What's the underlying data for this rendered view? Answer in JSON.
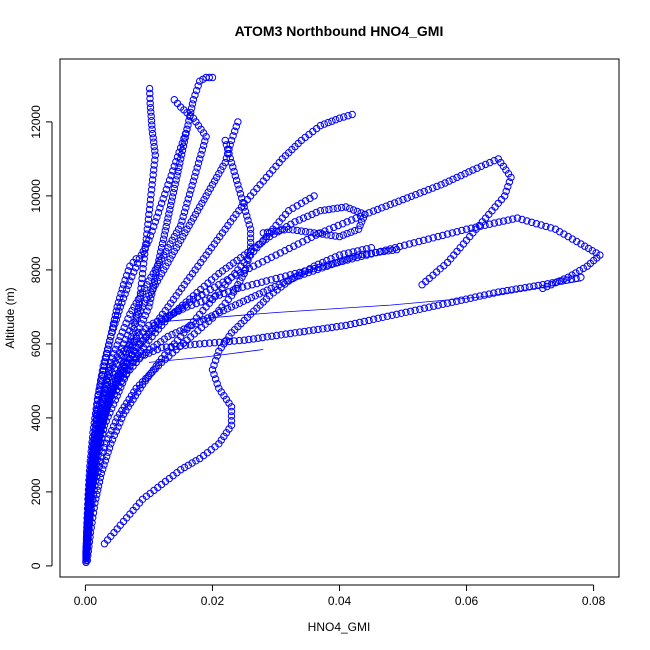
{
  "chart_data": {
    "type": "scatter",
    "title": "ATOM3 Northbound HNO4_GMI",
    "xlabel": "HNO4_GMI",
    "ylabel": "Altitude (m)",
    "xlim": [
      -0.004,
      0.084
    ],
    "ylim": [
      -300,
      13700
    ],
    "x_ticks": [
      0.0,
      0.02,
      0.04,
      0.06,
      0.08
    ],
    "x_tick_labels": [
      "0.00",
      "0.02",
      "0.04",
      "0.06",
      "0.08"
    ],
    "y_ticks": [
      0,
      2000,
      4000,
      6000,
      8000,
      10000,
      12000
    ],
    "y_tick_labels": [
      "0",
      "2000",
      "4000",
      "6000",
      "8000",
      "10000",
      "12000"
    ],
    "grid": false,
    "legend": "none",
    "marker": "open-circle",
    "color": "#0000ff",
    "series": [
      {
        "points": [
          [
            0.0001,
            100
          ],
          [
            0.0003,
            800
          ],
          [
            0.0006,
            1600
          ],
          [
            0.001,
            2400
          ],
          [
            0.0015,
            3200
          ],
          [
            0.0022,
            4000
          ],
          [
            0.003,
            4800
          ],
          [
            0.004,
            5500
          ],
          [
            0.0055,
            6200
          ],
          [
            0.007,
            6800
          ],
          [
            0.009,
            7400
          ],
          [
            0.011,
            8000
          ],
          [
            0.013,
            8600
          ],
          [
            0.015,
            9200
          ],
          [
            0.016,
            9800
          ],
          [
            0.017,
            10400
          ],
          [
            0.018,
            11000
          ],
          [
            0.019,
            11600
          ],
          [
            0.017,
            12100
          ],
          [
            0.015,
            12400
          ],
          [
            0.014,
            12600
          ]
        ]
      },
      {
        "points": [
          [
            0.0002,
            200
          ],
          [
            0.0005,
            1000
          ],
          [
            0.001,
            2000
          ],
          [
            0.002,
            3000
          ],
          [
            0.003,
            3800
          ],
          [
            0.005,
            4600
          ],
          [
            0.007,
            5400
          ],
          [
            0.01,
            6100
          ],
          [
            0.013,
            6700
          ],
          [
            0.017,
            7300
          ],
          [
            0.021,
            7900
          ],
          [
            0.025,
            8400
          ],
          [
            0.029,
            8900
          ],
          [
            0.033,
            9300
          ],
          [
            0.037,
            9600
          ],
          [
            0.041,
            9700
          ],
          [
            0.044,
            9500
          ],
          [
            0.043,
            9100
          ],
          [
            0.04,
            8900
          ],
          [
            0.036,
            9000
          ],
          [
            0.032,
            9100
          ],
          [
            0.028,
            9000
          ]
        ]
      },
      {
        "points": [
          [
            0.0001,
            300
          ],
          [
            0.0004,
            1200
          ],
          [
            0.0008,
            2200
          ],
          [
            0.0012,
            3000
          ],
          [
            0.0016,
            3800
          ],
          [
            0.002,
            4600
          ],
          [
            0.003,
            5400
          ],
          [
            0.004,
            6200
          ],
          [
            0.005,
            7000
          ],
          [
            0.006,
            7600
          ],
          [
            0.007,
            8100
          ],
          [
            0.008,
            8300
          ]
        ]
      },
      {
        "points": [
          [
            0.0002,
            500
          ],
          [
            0.0006,
            1500
          ],
          [
            0.0012,
            2500
          ],
          [
            0.002,
            3400
          ],
          [
            0.0035,
            4300
          ],
          [
            0.006,
            5100
          ],
          [
            0.009,
            5700
          ],
          [
            0.013,
            6200
          ],
          [
            0.018,
            6600
          ],
          [
            0.023,
            7000
          ],
          [
            0.028,
            7400
          ],
          [
            0.033,
            7800
          ],
          [
            0.038,
            8100
          ],
          [
            0.043,
            8400
          ],
          [
            0.047,
            8500
          ],
          [
            0.049,
            8550
          ]
        ]
      },
      {
        "points": [
          [
            0.0003,
            150
          ],
          [
            0.0008,
            900
          ],
          [
            0.0015,
            1700
          ],
          [
            0.0025,
            2500
          ],
          [
            0.004,
            3300
          ],
          [
            0.006,
            4100
          ],
          [
            0.009,
            4900
          ],
          [
            0.012,
            5600
          ],
          [
            0.015,
            6200
          ],
          [
            0.018,
            6800
          ],
          [
            0.021,
            7400
          ],
          [
            0.024,
            8000
          ],
          [
            0.027,
            8600
          ],
          [
            0.03,
            9200
          ],
          [
            0.032,
            9600
          ],
          [
            0.034,
            9800
          ],
          [
            0.036,
            10000
          ]
        ]
      },
      {
        "points": [
          [
            0.003,
            600
          ],
          [
            0.005,
            1000
          ],
          [
            0.007,
            1400
          ],
          [
            0.009,
            1800
          ],
          [
            0.012,
            2200
          ],
          [
            0.015,
            2600
          ],
          [
            0.018,
            2900
          ],
          [
            0.021,
            3300
          ],
          [
            0.023,
            3800
          ],
          [
            0.023,
            4300
          ],
          [
            0.021,
            4800
          ],
          [
            0.02,
            5300
          ],
          [
            0.021,
            5800
          ],
          [
            0.023,
            6300
          ],
          [
            0.026,
            6800
          ],
          [
            0.029,
            7300
          ],
          [
            0.032,
            7700
          ],
          [
            0.036,
            8100
          ],
          [
            0.04,
            8400
          ],
          [
            0.045,
            8600
          ]
        ]
      },
      {
        "points": [
          [
            0.0001,
            250
          ],
          [
            0.0003,
            1100
          ],
          [
            0.0006,
            1900
          ],
          [
            0.001,
            2700
          ],
          [
            0.0018,
            3500
          ],
          [
            0.003,
            4300
          ],
          [
            0.005,
            5000
          ],
          [
            0.008,
            5600
          ],
          [
            0.012,
            5900
          ],
          [
            0.018,
            6000
          ],
          [
            0.025,
            6100
          ],
          [
            0.033,
            6300
          ],
          [
            0.041,
            6500
          ],
          [
            0.049,
            6800
          ],
          [
            0.057,
            7100
          ],
          [
            0.065,
            7400
          ],
          [
            0.072,
            7600
          ],
          [
            0.078,
            7800
          ]
        ]
      },
      {
        "points": [
          [
            0.0001,
            350
          ],
          [
            0.0003,
            1300
          ],
          [
            0.0007,
            2300
          ],
          [
            0.0012,
            3300
          ],
          [
            0.002,
            4200
          ],
          [
            0.0035,
            5000
          ],
          [
            0.006,
            5800
          ],
          [
            0.01,
            6500
          ],
          [
            0.016,
            7000
          ],
          [
            0.024,
            7500
          ],
          [
            0.033,
            7900
          ],
          [
            0.042,
            8300
          ],
          [
            0.051,
            8700
          ],
          [
            0.06,
            9100
          ],
          [
            0.068,
            9400
          ],
          [
            0.074,
            9100
          ],
          [
            0.078,
            8700
          ],
          [
            0.081,
            8400
          ],
          [
            0.079,
            8100
          ],
          [
            0.076,
            7800
          ],
          [
            0.072,
            7500
          ]
        ]
      },
      {
        "points": [
          [
            0.0002,
            450
          ],
          [
            0.0005,
            1400
          ],
          [
            0.001,
            2400
          ],
          [
            0.0018,
            3400
          ],
          [
            0.003,
            4300
          ],
          [
            0.005,
            5100
          ],
          [
            0.008,
            5900
          ],
          [
            0.012,
            6600
          ],
          [
            0.017,
            7200
          ],
          [
            0.023,
            7800
          ],
          [
            0.03,
            8400
          ],
          [
            0.037,
            9000
          ],
          [
            0.044,
            9500
          ],
          [
            0.05,
            9900
          ],
          [
            0.056,
            10300
          ],
          [
            0.061,
            10700
          ],
          [
            0.065,
            11000
          ],
          [
            0.067,
            10500
          ],
          [
            0.066,
            10000
          ],
          [
            0.063,
            9400
          ],
          [
            0.06,
            8800
          ],
          [
            0.057,
            8200
          ],
          [
            0.053,
            7600
          ]
        ]
      },
      {
        "points": [
          [
            0.0001,
            400
          ],
          [
            0.0004,
            1300
          ],
          [
            0.0009,
            2200
          ],
          [
            0.0016,
            3100
          ],
          [
            0.0028,
            4000
          ],
          [
            0.0045,
            4800
          ],
          [
            0.007,
            5600
          ],
          [
            0.01,
            6300
          ],
          [
            0.013,
            7000
          ],
          [
            0.016,
            7700
          ],
          [
            0.019,
            8400
          ],
          [
            0.022,
            9100
          ],
          [
            0.025,
            9800
          ],
          [
            0.028,
            10400
          ],
          [
            0.031,
            11000
          ],
          [
            0.034,
            11500
          ],
          [
            0.037,
            11900
          ],
          [
            0.04,
            12100
          ],
          [
            0.042,
            12200
          ]
        ]
      },
      {
        "points": [
          [
            0.0001,
            200
          ],
          [
            0.0004,
            1100
          ],
          [
            0.0008,
            2000
          ],
          [
            0.0015,
            2900
          ],
          [
            0.0025,
            3800
          ],
          [
            0.004,
            4600
          ],
          [
            0.006,
            5400
          ],
          [
            0.008,
            6200
          ],
          [
            0.01,
            7000
          ],
          [
            0.011,
            7800
          ],
          [
            0.012,
            8600
          ],
          [
            0.013,
            9400
          ],
          [
            0.014,
            10200
          ],
          [
            0.015,
            11000
          ],
          [
            0.016,
            11800
          ],
          [
            0.017,
            12600
          ],
          [
            0.018,
            13100
          ],
          [
            0.019,
            13200
          ],
          [
            0.02,
            13200
          ]
        ]
      },
      {
        "points": [
          [
            0.0002,
            300
          ],
          [
            0.0005,
            1200
          ],
          [
            0.001,
            2100
          ],
          [
            0.0017,
            3000
          ],
          [
            0.0028,
            3900
          ],
          [
            0.0042,
            4700
          ],
          [
            0.006,
            5500
          ],
          [
            0.0075,
            6300
          ],
          [
            0.0085,
            7100
          ],
          [
            0.009,
            7900
          ],
          [
            0.0095,
            8700
          ],
          [
            0.01,
            9500
          ],
          [
            0.0105,
            10300
          ],
          [
            0.011,
            11100
          ],
          [
            0.0105,
            11800
          ],
          [
            0.0102,
            12500
          ],
          [
            0.0101,
            12900
          ]
        ]
      },
      {
        "points": [
          [
            0.0001,
            100
          ],
          [
            0.0002,
            900
          ],
          [
            0.0004,
            1800
          ],
          [
            0.0007,
            2700
          ],
          [
            0.0012,
            3600
          ],
          [
            0.0019,
            4500
          ],
          [
            0.0028,
            5400
          ],
          [
            0.004,
            6200
          ],
          [
            0.0055,
            7000
          ],
          [
            0.007,
            7700
          ],
          [
            0.0085,
            8300
          ],
          [
            0.01,
            8800
          ],
          [
            0.011,
            9300
          ],
          [
            0.012,
            9800
          ],
          [
            0.013,
            10300
          ],
          [
            0.014,
            10800
          ],
          [
            0.015,
            11300
          ],
          [
            0.016,
            11800
          ]
        ]
      },
      {
        "points": [
          [
            0.0003,
            500
          ],
          [
            0.0008,
            1400
          ],
          [
            0.0016,
            2300
          ],
          [
            0.003,
            3200
          ],
          [
            0.005,
            4000
          ],
          [
            0.008,
            4800
          ],
          [
            0.012,
            5500
          ],
          [
            0.016,
            6100
          ],
          [
            0.02,
            6700
          ],
          [
            0.023,
            7300
          ],
          [
            0.025,
            7900
          ],
          [
            0.026,
            8500
          ],
          [
            0.026,
            9100
          ],
          [
            0.025,
            9700
          ],
          [
            0.024,
            10300
          ],
          [
            0.023,
            10900
          ],
          [
            0.022,
            11500
          ]
        ]
      },
      {
        "points": [
          [
            0.0001,
            150
          ],
          [
            0.0003,
            1000
          ],
          [
            0.0006,
            1900
          ],
          [
            0.001,
            2800
          ],
          [
            0.0017,
            3700
          ],
          [
            0.0027,
            4500
          ],
          [
            0.004,
            5300
          ],
          [
            0.006,
            6000
          ],
          [
            0.008,
            6700
          ],
          [
            0.01,
            7300
          ],
          [
            0.012,
            7900
          ],
          [
            0.014,
            8500
          ],
          [
            0.016,
            9100
          ],
          [
            0.018,
            9700
          ],
          [
            0.02,
            10300
          ],
          [
            0.022,
            10900
          ],
          [
            0.023,
            11500
          ],
          [
            0.024,
            12000
          ]
        ]
      }
    ],
    "connector_lines": [
      {
        "points": [
          [
            0.012,
            6600
          ],
          [
            0.03,
            6850
          ],
          [
            0.048,
            7050
          ],
          [
            0.063,
            7280
          ],
          [
            0.078,
            7700
          ]
        ]
      },
      {
        "points": [
          [
            0.01,
            5500
          ],
          [
            0.019,
            5650
          ],
          [
            0.028,
            5850
          ]
        ]
      }
    ]
  }
}
